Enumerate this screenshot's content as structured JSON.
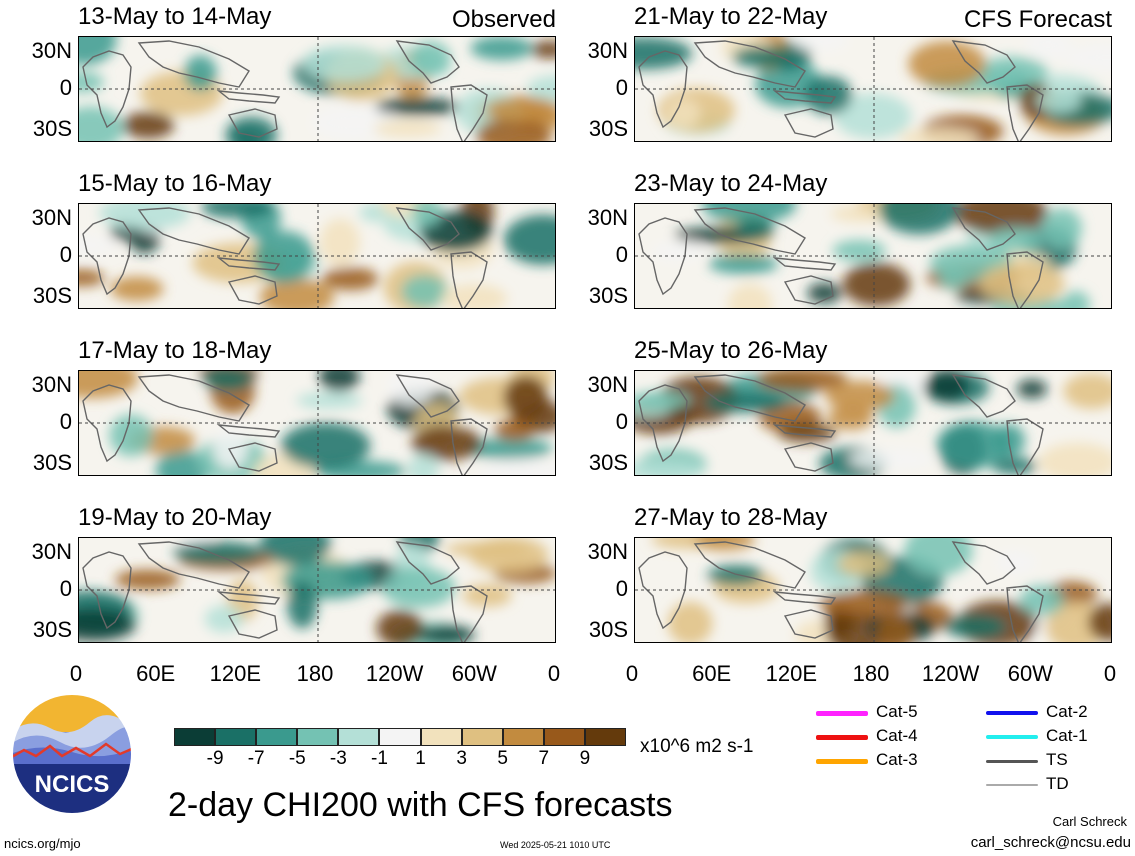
{
  "panels": [
    {
      "title": "13-May to 14-May",
      "tag": "Observed",
      "seed": 1
    },
    {
      "title": "21-May to 22-May",
      "tag": "CFS Forecast",
      "seed": 5
    },
    {
      "title": "15-May to 16-May",
      "tag": "",
      "seed": 2
    },
    {
      "title": "23-May to 24-May",
      "tag": "",
      "seed": 6
    },
    {
      "title": "17-May to 18-May",
      "tag": "",
      "seed": 3
    },
    {
      "title": "25-May to 26-May",
      "tag": "",
      "seed": 7
    },
    {
      "title": "19-May to 20-May",
      "tag": "",
      "seed": 4
    },
    {
      "title": "27-May to 28-May",
      "tag": "",
      "seed": 8
    }
  ],
  "lat_labels": [
    "30N",
    "0",
    "30S"
  ],
  "lon_labels": [
    "0",
    "60E",
    "120E",
    "180",
    "120W",
    "60W",
    "0"
  ],
  "colorbar": {
    "colors": [
      "#0b3d36",
      "#1a7066",
      "#3a9a8e",
      "#74c2b3",
      "#b4e0d7",
      "#f4f4f4",
      "#f2e2bd",
      "#dfc081",
      "#c28b3f",
      "#98591b",
      "#643a0c"
    ],
    "ticks": [
      "-9",
      "-7",
      "-5",
      "-3",
      "-1",
      "1",
      "3",
      "5",
      "7",
      "9"
    ],
    "units": "x10^6 m2 s-1"
  },
  "legend": [
    {
      "label": "Cat-5",
      "color": "#ff22ff",
      "width": 5
    },
    {
      "label": "Cat-4",
      "color": "#ee1111",
      "width": 5
    },
    {
      "label": "Cat-3",
      "color": "#ffa500",
      "width": 5
    },
    {
      "label": "Cat-2",
      "color": "#1111ee",
      "width": 4
    },
    {
      "label": "Cat-1",
      "color": "#22eeee",
      "width": 4
    },
    {
      "label": "TS",
      "color": "#555555",
      "width": 3
    },
    {
      "label": "TD",
      "color": "#aaaaaa",
      "width": 2
    }
  ],
  "logo_text": "NCICS",
  "main_title": "2-day CHI200 with CFS forecasts",
  "footer": {
    "url": "ncics.org/mjo",
    "timestamp": "Wed 2025-05-21 1010 UTC",
    "author": "Carl Schreck",
    "email": "carl_schreck@ncsu.edu"
  }
}
